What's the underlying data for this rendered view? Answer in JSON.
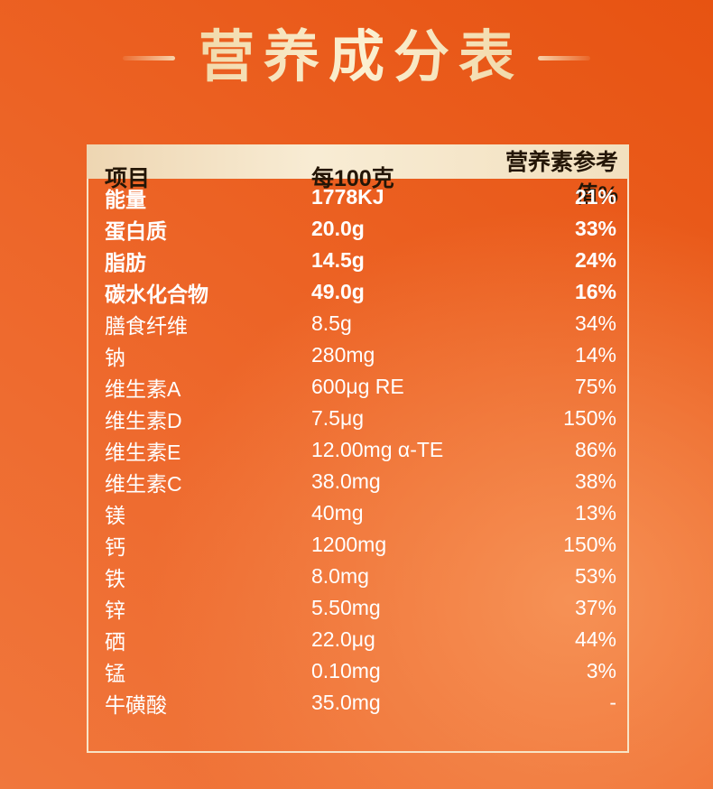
{
  "title": "营养成分表",
  "table": {
    "headers": [
      "项目",
      "每100克",
      "营养素参考值%"
    ],
    "rows": [
      {
        "name": "能量",
        "value": "1778KJ",
        "nrv": "21%",
        "bold": true
      },
      {
        "name": "蛋白质",
        "value": "20.0g",
        "nrv": "33%",
        "bold": true
      },
      {
        "name": "脂肪",
        "value": "14.5g",
        "nrv": "24%",
        "bold": true
      },
      {
        "name": "碳水化合物",
        "value": "49.0g",
        "nrv": "16%",
        "bold": true
      },
      {
        "name": "膳食纤维",
        "value": "8.5g",
        "nrv": "34%",
        "bold": false
      },
      {
        "name": "钠",
        "value": "280mg",
        "nrv": "14%",
        "bold": false
      },
      {
        "name": "维生素A",
        "value": "600μg RE",
        "nrv": "75%",
        "bold": false
      },
      {
        "name": "维生素D",
        "value": "7.5μg",
        "nrv": "150%",
        "bold": false
      },
      {
        "name": "维生素E",
        "value": "12.00mg α-TE",
        "nrv": "86%",
        "bold": false
      },
      {
        "name": "维生素C",
        "value": "38.0mg",
        "nrv": "38%",
        "bold": false
      },
      {
        "name": "镁",
        "value": "40mg",
        "nrv": "13%",
        "bold": false
      },
      {
        "name": "钙",
        "value": "1200mg",
        "nrv": "150%",
        "bold": false
      },
      {
        "name": "铁",
        "value": "8.0mg",
        "nrv": "53%",
        "bold": false
      },
      {
        "name": "锌",
        "value": "5.50mg",
        "nrv": "37%",
        "bold": false
      },
      {
        "name": "硒",
        "value": "22.0μg",
        "nrv": "44%",
        "bold": false
      },
      {
        "name": "锰",
        "value": "0.10mg",
        "nrv": "3%",
        "bold": false
      },
      {
        "name": "牛磺酸",
        "value": "35.0mg",
        "nrv": "-",
        "bold": false
      }
    ]
  },
  "colors": {
    "background_dark": "#e75312",
    "background_light": "#f7965a",
    "title_text": "#f6e6c1",
    "header_band": "#f3e2c2",
    "header_text": "#241607",
    "row_text": "#ffffff",
    "table_border": "#f8e9cd"
  }
}
